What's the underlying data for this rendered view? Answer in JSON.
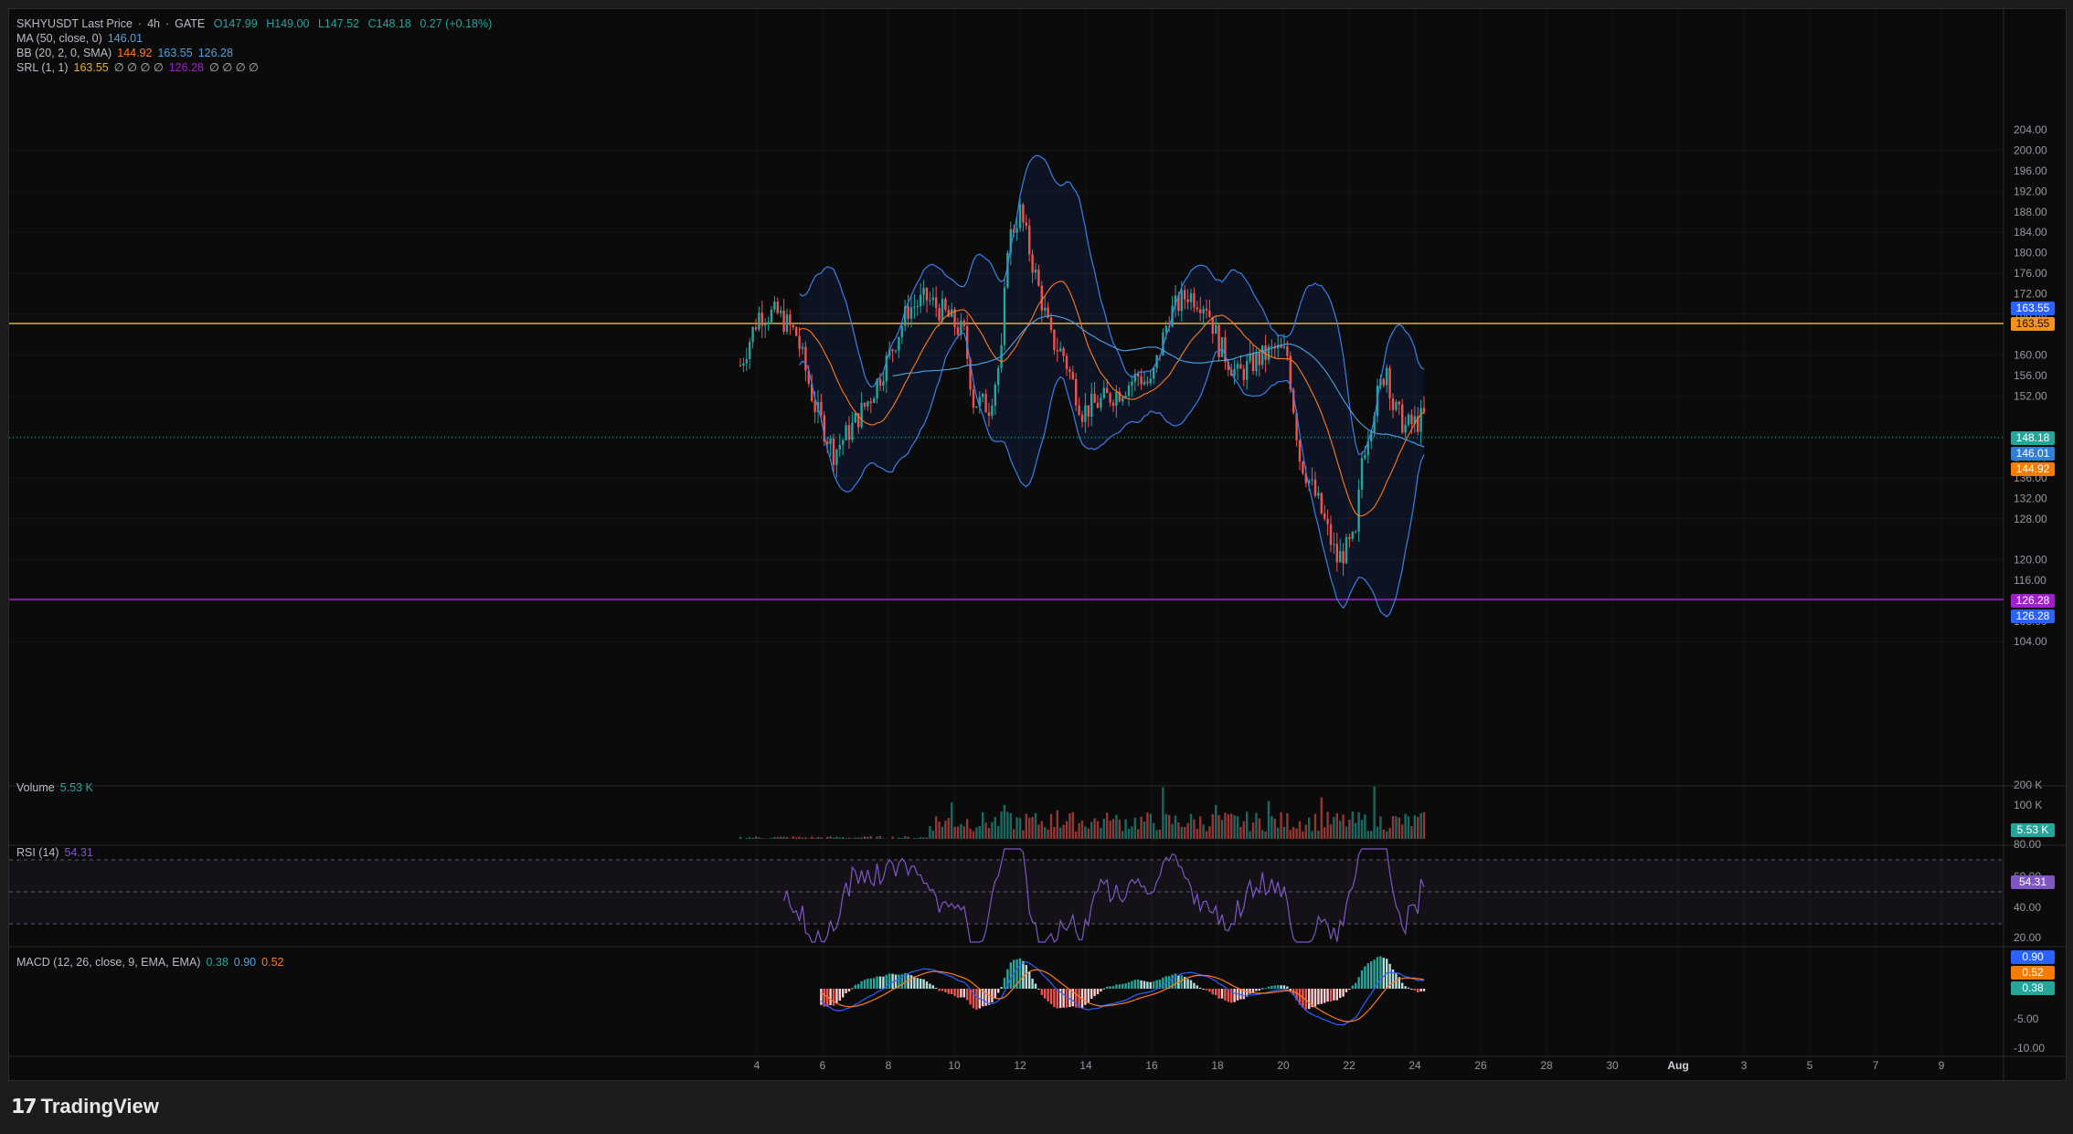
{
  "header": {
    "symbol": "SKHYUSDT Last Price",
    "interval": "4h",
    "exchange": "GATE",
    "open": "O147.99",
    "high": "H149.00",
    "low": "L147.52",
    "close": "C148.18",
    "change": "0.27 (+0.18%)"
  },
  "indicators": {
    "ma_label": "MA (50, close, 0)",
    "ma_value": "146.01",
    "bb_label": "BB (20, 2, 0, SMA)",
    "bb_basis": "144.92",
    "bb_upper": "163.55",
    "bb_lower": "126.28",
    "srl_label": "SRL (1, 1)",
    "srl_value1": "163.55",
    "srl_zeros1": "∅ ∅ ∅ ∅",
    "srl_value2": "126.28",
    "srl_zeros2": "∅ ∅ ∅ ∅"
  },
  "volume": {
    "label": "Volume",
    "value": "5.53 K",
    "axis": [
      "200 K",
      "100 K"
    ]
  },
  "rsi": {
    "label": "RSI (14)",
    "value": "54.31",
    "axis": [
      "80.00",
      "60.00",
      "40.00",
      "20.00"
    ]
  },
  "macd": {
    "label": "MACD (12, 26, close, 9, EMA, EMA)",
    "hist": "0.38",
    "macd": "0.90",
    "signal": "0.52",
    "axis": [
      "-5.00",
      "-10.00"
    ]
  },
  "price_axis": [
    "204.00",
    "200.00",
    "196.00",
    "192.00",
    "188.00",
    "184.00",
    "180.00",
    "176.00",
    "172.00",
    "168.00",
    "160.00",
    "156.00",
    "152.00",
    "140.00",
    "136.00",
    "132.00",
    "128.00",
    "120.00",
    "116.00",
    "112.00",
    "108.00",
    "104.00"
  ],
  "time_axis": [
    "4",
    "6",
    "8",
    "10",
    "12",
    "14",
    "16",
    "18",
    "20",
    "22",
    "24",
    "26",
    "28",
    "30",
    "Aug",
    "3",
    "5",
    "7",
    "9"
  ],
  "badges": {
    "upper_a": "163.55",
    "upper_b": "163.55",
    "last": "148.18",
    "ma": "146.01",
    "basis": "144.92",
    "lower_a": "126.28",
    "lower_b": "126.28",
    "volume": "5.53 K",
    "rsi": "54.31",
    "macd_a": "0.90",
    "macd_b": "0.52",
    "macd_c": "0.38"
  },
  "colors": {
    "up": "#26a69a",
    "down": "#ef5350",
    "bb": "#2962ff",
    "ma": "#4fa3e0",
    "basis": "#ff7b1c",
    "srl_upper": "#e0b23a",
    "srl_lower": "#a020d0",
    "rsi": "#7e57c2"
  },
  "footer": {
    "brand": "TradingView",
    "logo_icon": "tradingview-logo-icon"
  }
}
